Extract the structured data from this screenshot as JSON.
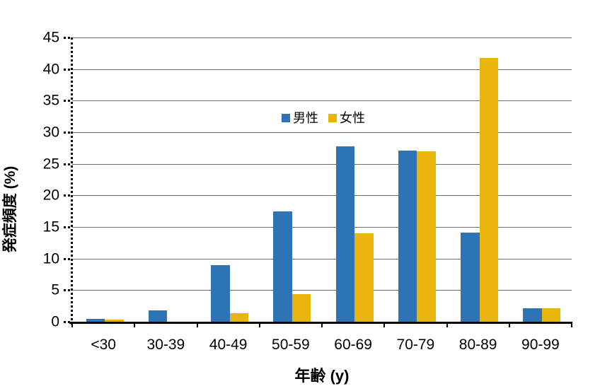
{
  "chart_data": {
    "type": "bar",
    "title": "",
    "categories": [
      "<30",
      "30-39",
      "40-49",
      "50-59",
      "60-69",
      "70-79",
      "80-89",
      "90-99"
    ],
    "series": [
      {
        "name": "男性",
        "color": "#2E74B5",
        "values": [
          0.4,
          1.8,
          9.0,
          17.5,
          27.8,
          27.1,
          14.1,
          2.1
        ]
      },
      {
        "name": "女性",
        "color": "#E9B40C",
        "values": [
          0.3,
          0,
          1.4,
          4.4,
          14.0,
          27.0,
          41.8,
          2.1
        ]
      }
    ],
    "xlabel": "年齢 (y)",
    "ylabel": "発症頻度 (%)",
    "ylim": [
      0,
      45
    ],
    "ytick_step": 5,
    "yticks": [
      0,
      5,
      10,
      15,
      20,
      25,
      30,
      35,
      40,
      45
    ],
    "grid": true,
    "gridline_color": "#6b6b6b",
    "legend_position": "inside-top-center"
  }
}
